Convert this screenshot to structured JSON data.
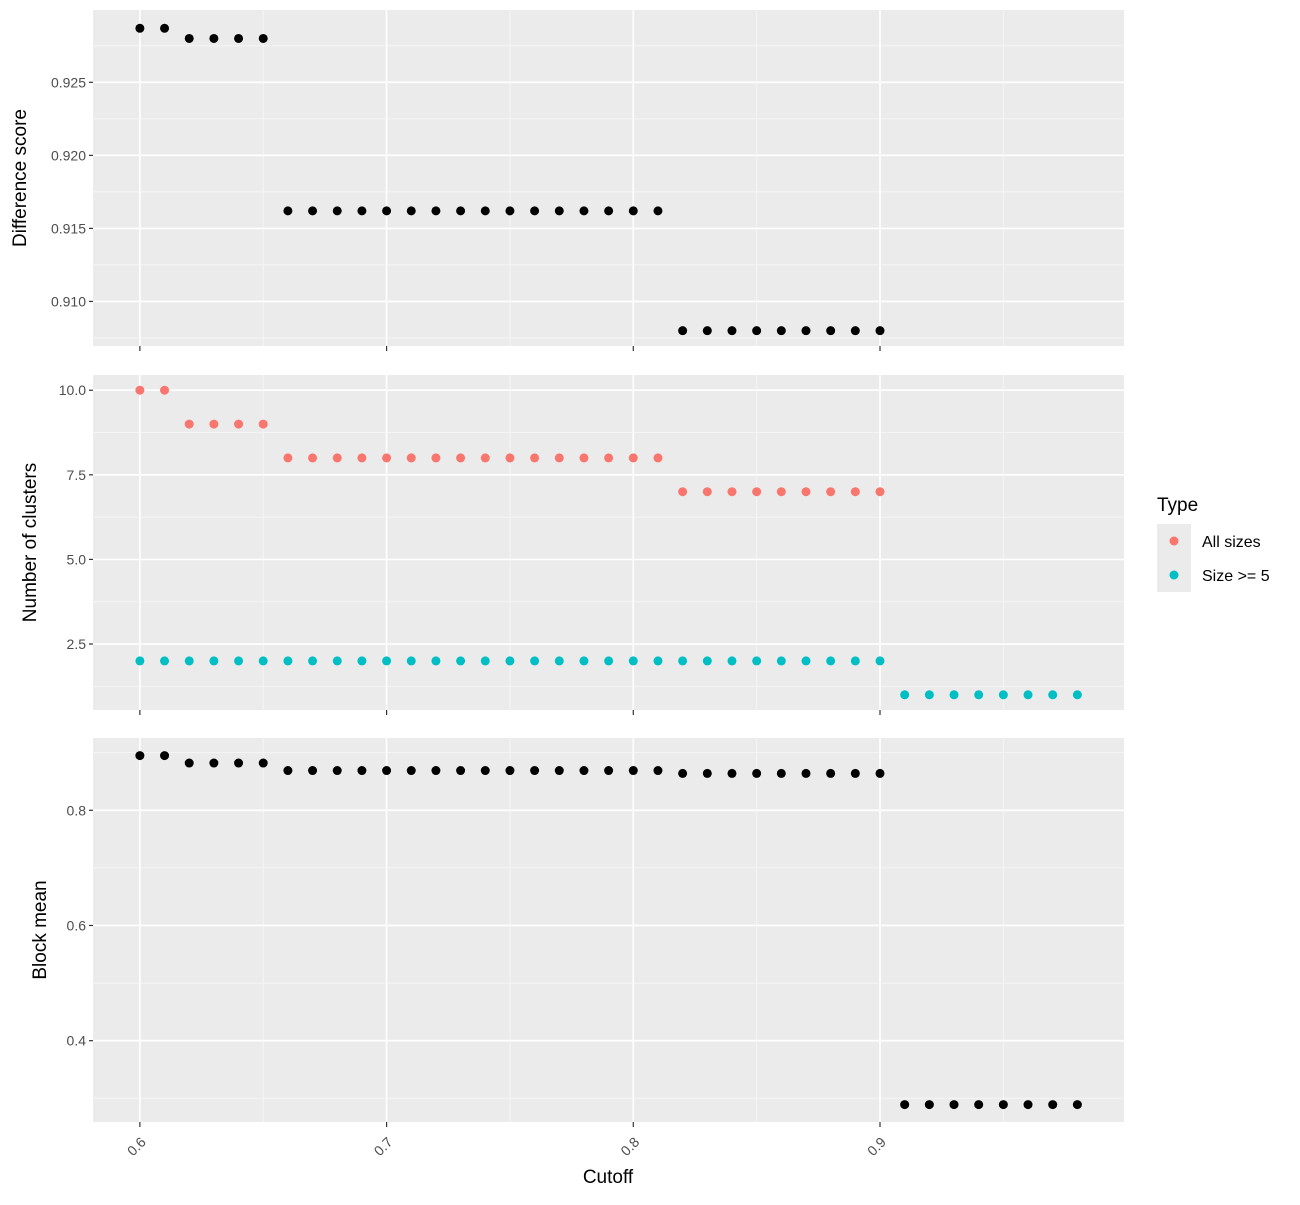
{
  "colors": {
    "panel_bg": "#ebebeb",
    "grid_major": "#ffffff",
    "grid_minor": "#f5f5f5",
    "tick": "#333333",
    "tick_text": "#4d4d4d",
    "black_points": "#000000",
    "all_sizes": "#f8766d",
    "size_ge5": "#00bfc4"
  },
  "chart_data": [
    {
      "type": "scatter",
      "ylabel": "Difference score",
      "xlim": [
        0.581,
        0.9989
      ],
      "ylim": [
        0.90695,
        0.92995
      ],
      "y_ticks": [
        0.91,
        0.915,
        0.92,
        0.925
      ],
      "y_tick_labels": [
        "0.910",
        "0.915",
        "0.920",
        "0.925"
      ],
      "series": [
        {
          "color_key": "black_points",
          "points": [
            [
              0.6,
              0.9287
            ],
            [
              0.61,
              0.9287
            ],
            [
              0.62,
              0.928
            ],
            [
              0.63,
              0.928
            ],
            [
              0.64,
              0.928
            ],
            [
              0.65,
              0.928
            ],
            [
              0.66,
              0.9162
            ],
            [
              0.67,
              0.9162
            ],
            [
              0.68,
              0.9162
            ],
            [
              0.69,
              0.9162
            ],
            [
              0.7,
              0.9162
            ],
            [
              0.71,
              0.9162
            ],
            [
              0.72,
              0.9162
            ],
            [
              0.73,
              0.9162
            ],
            [
              0.74,
              0.9162
            ],
            [
              0.75,
              0.9162
            ],
            [
              0.76,
              0.9162
            ],
            [
              0.77,
              0.9162
            ],
            [
              0.78,
              0.9162
            ],
            [
              0.79,
              0.9162
            ],
            [
              0.8,
              0.9162
            ],
            [
              0.81,
              0.9162
            ],
            [
              0.82,
              0.908
            ],
            [
              0.83,
              0.908
            ],
            [
              0.84,
              0.908
            ],
            [
              0.85,
              0.908
            ],
            [
              0.86,
              0.908
            ],
            [
              0.87,
              0.908
            ],
            [
              0.88,
              0.908
            ],
            [
              0.89,
              0.908
            ],
            [
              0.9,
              0.908
            ]
          ]
        }
      ]
    },
    {
      "type": "scatter",
      "ylabel": "Number of clusters",
      "xlim": [
        0.581,
        0.9989
      ],
      "ylim": [
        0.55,
        10.45
      ],
      "y_ticks": [
        2.5,
        5.0,
        7.5,
        10.0
      ],
      "y_tick_labels": [
        "2.5",
        "5.0",
        "7.5",
        "10.0"
      ],
      "legend": {
        "title": "Type",
        "position": "right",
        "entries": [
          {
            "label": "All sizes",
            "color_key": "all_sizes"
          },
          {
            "label": "Size >= 5",
            "color_key": "size_ge5"
          }
        ]
      },
      "series": [
        {
          "name": "All sizes",
          "color_key": "all_sizes",
          "points": [
            [
              0.6,
              10
            ],
            [
              0.61,
              10
            ],
            [
              0.62,
              9
            ],
            [
              0.63,
              9
            ],
            [
              0.64,
              9
            ],
            [
              0.65,
              9
            ],
            [
              0.66,
              8
            ],
            [
              0.67,
              8
            ],
            [
              0.68,
              8
            ],
            [
              0.69,
              8
            ],
            [
              0.7,
              8
            ],
            [
              0.71,
              8
            ],
            [
              0.72,
              8
            ],
            [
              0.73,
              8
            ],
            [
              0.74,
              8
            ],
            [
              0.75,
              8
            ],
            [
              0.76,
              8
            ],
            [
              0.77,
              8
            ],
            [
              0.78,
              8
            ],
            [
              0.79,
              8
            ],
            [
              0.8,
              8
            ],
            [
              0.81,
              8
            ],
            [
              0.82,
              7
            ],
            [
              0.83,
              7
            ],
            [
              0.84,
              7
            ],
            [
              0.85,
              7
            ],
            [
              0.86,
              7
            ],
            [
              0.87,
              7
            ],
            [
              0.88,
              7
            ],
            [
              0.89,
              7
            ],
            [
              0.9,
              7
            ]
          ]
        },
        {
          "name": "Size >= 5",
          "color_key": "size_ge5",
          "points": [
            [
              0.6,
              2
            ],
            [
              0.61,
              2
            ],
            [
              0.62,
              2
            ],
            [
              0.63,
              2
            ],
            [
              0.64,
              2
            ],
            [
              0.65,
              2
            ],
            [
              0.66,
              2
            ],
            [
              0.67,
              2
            ],
            [
              0.68,
              2
            ],
            [
              0.69,
              2
            ],
            [
              0.7,
              2
            ],
            [
              0.71,
              2
            ],
            [
              0.72,
              2
            ],
            [
              0.73,
              2
            ],
            [
              0.74,
              2
            ],
            [
              0.75,
              2
            ],
            [
              0.76,
              2
            ],
            [
              0.77,
              2
            ],
            [
              0.78,
              2
            ],
            [
              0.79,
              2
            ],
            [
              0.8,
              2
            ],
            [
              0.81,
              2
            ],
            [
              0.82,
              2
            ],
            [
              0.83,
              2
            ],
            [
              0.84,
              2
            ],
            [
              0.85,
              2
            ],
            [
              0.86,
              2
            ],
            [
              0.87,
              2
            ],
            [
              0.88,
              2
            ],
            [
              0.89,
              2
            ],
            [
              0.9,
              2
            ],
            [
              0.91,
              1
            ],
            [
              0.92,
              1
            ],
            [
              0.93,
              1
            ],
            [
              0.94,
              1
            ],
            [
              0.95,
              1
            ],
            [
              0.96,
              1
            ],
            [
              0.97,
              1
            ],
            [
              0.98,
              1
            ]
          ]
        }
      ]
    },
    {
      "type": "scatter",
      "ylabel": "Block mean",
      "xlabel": "Cutoff",
      "xlim": [
        0.581,
        0.9989
      ],
      "ylim": [
        0.2588,
        0.9255
      ],
      "x_ticks": [
        0.6,
        0.7,
        0.8,
        0.9
      ],
      "x_tick_labels": [
        "0.6",
        "0.7",
        "0.8",
        "0.9"
      ],
      "y_ticks": [
        0.4,
        0.6,
        0.8
      ],
      "y_tick_labels": [
        "0.4",
        "0.6",
        "0.8"
      ],
      "series": [
        {
          "color_key": "black_points",
          "points": [
            [
              0.6,
              0.895
            ],
            [
              0.61,
              0.895
            ],
            [
              0.62,
              0.882
            ],
            [
              0.63,
              0.882
            ],
            [
              0.64,
              0.882
            ],
            [
              0.65,
              0.882
            ],
            [
              0.66,
              0.869
            ],
            [
              0.67,
              0.869
            ],
            [
              0.68,
              0.869
            ],
            [
              0.69,
              0.869
            ],
            [
              0.7,
              0.869
            ],
            [
              0.71,
              0.869
            ],
            [
              0.72,
              0.869
            ],
            [
              0.73,
              0.869
            ],
            [
              0.74,
              0.869
            ],
            [
              0.75,
              0.869
            ],
            [
              0.76,
              0.869
            ],
            [
              0.77,
              0.869
            ],
            [
              0.78,
              0.869
            ],
            [
              0.79,
              0.869
            ],
            [
              0.8,
              0.869
            ],
            [
              0.81,
              0.869
            ],
            [
              0.82,
              0.864
            ],
            [
              0.83,
              0.864
            ],
            [
              0.84,
              0.864
            ],
            [
              0.85,
              0.864
            ],
            [
              0.86,
              0.864
            ],
            [
              0.87,
              0.864
            ],
            [
              0.88,
              0.864
            ],
            [
              0.89,
              0.864
            ],
            [
              0.9,
              0.864
            ],
            [
              0.91,
              0.289
            ],
            [
              0.92,
              0.289
            ],
            [
              0.93,
              0.289
            ],
            [
              0.94,
              0.289
            ],
            [
              0.95,
              0.289
            ],
            [
              0.96,
              0.289
            ],
            [
              0.97,
              0.289
            ],
            [
              0.98,
              0.289
            ]
          ]
        }
      ]
    }
  ]
}
